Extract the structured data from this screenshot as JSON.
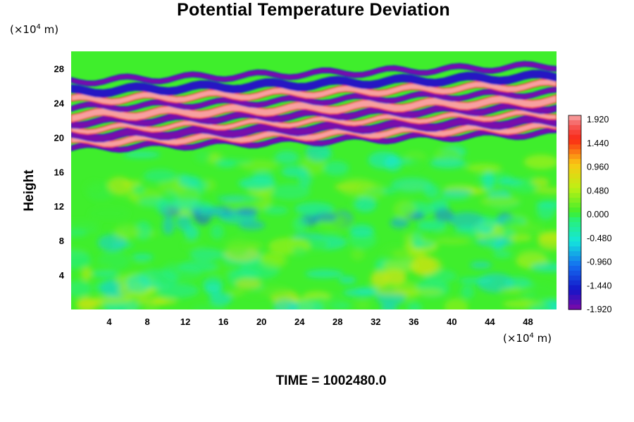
{
  "chart_data": {
    "type": "heatmap",
    "title": "Potential Temperature Deviation",
    "ylabel": "Height",
    "x_unit_prefix": "(×10",
    "x_unit_exp": "4",
    "x_unit_suffix": " m)",
    "y_unit_prefix": "(×10",
    "y_unit_exp": "4",
    "y_unit_suffix": " m)",
    "time_label": "TIME = 1002480.0",
    "xlim": [
      0,
      51
    ],
    "ylim": [
      0,
      30
    ],
    "x_ticks": [
      4,
      8,
      12,
      16,
      20,
      24,
      28,
      32,
      36,
      40,
      44,
      48
    ],
    "y_ticks": [
      4,
      8,
      12,
      16,
      20,
      24,
      28
    ],
    "colorbar": {
      "min": -1.92,
      "max": 1.92,
      "tick_labels": [
        "1.920",
        "1.440",
        "0.960",
        "0.480",
        "0.000",
        "-0.480",
        "-0.960",
        "-1.440",
        "-1.920"
      ]
    },
    "bands": [
      {
        "y": 19.6,
        "value": -1.9
      },
      {
        "y": 20.3,
        "value": 1.9
      },
      {
        "y": 21.0,
        "value": -1.9
      },
      {
        "y": 21.8,
        "value": 1.9
      },
      {
        "y": 22.6,
        "value": -1.9
      },
      {
        "y": 23.4,
        "value": 1.9
      },
      {
        "y": 24.3,
        "value": -1.9
      },
      {
        "y": 25.2,
        "value": 1.9
      },
      {
        "y": 26.2,
        "value": -1.6
      },
      {
        "y": 27.4,
        "value": -1.9
      }
    ],
    "colors": {
      "background": "#3fee2c",
      "positive_extreme": "#f8a8a8",
      "negative_extreme": "#7e0aa8"
    }
  }
}
